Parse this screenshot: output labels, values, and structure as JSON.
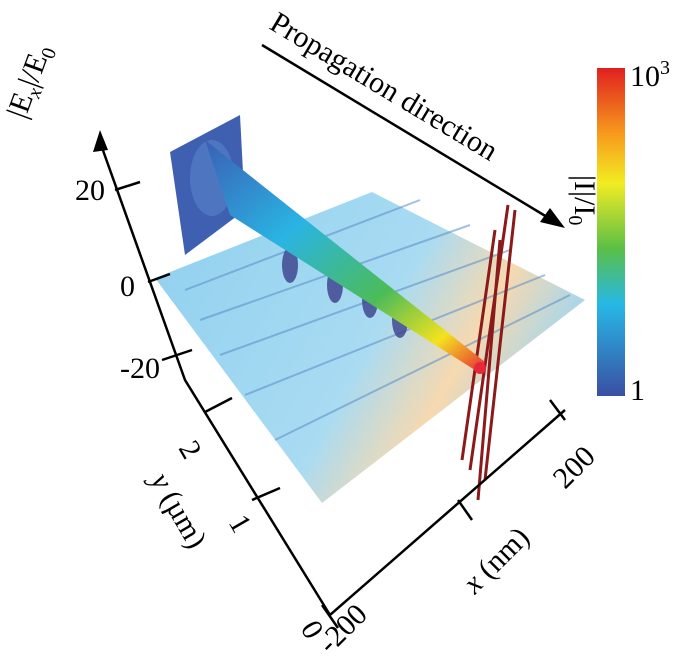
{
  "figure": {
    "z_axis": {
      "label": [
        "|E",
        "x",
        "|/E",
        "0"
      ],
      "ticks": [
        "20",
        "0",
        "-20"
      ]
    },
    "y_axis": {
      "label": [
        "y",
        " (µm)"
      ],
      "ticks": [
        "2",
        "1",
        "0"
      ]
    },
    "x_axis": {
      "label": [
        "x",
        " (nm)"
      ],
      "ticks": [
        "-200",
        "200"
      ]
    },
    "annotation": "Propagation direction",
    "colorbar": {
      "top": [
        "10",
        "3"
      ],
      "bottom": "1",
      "label": [
        "|I|/I",
        "0"
      ]
    }
  }
}
